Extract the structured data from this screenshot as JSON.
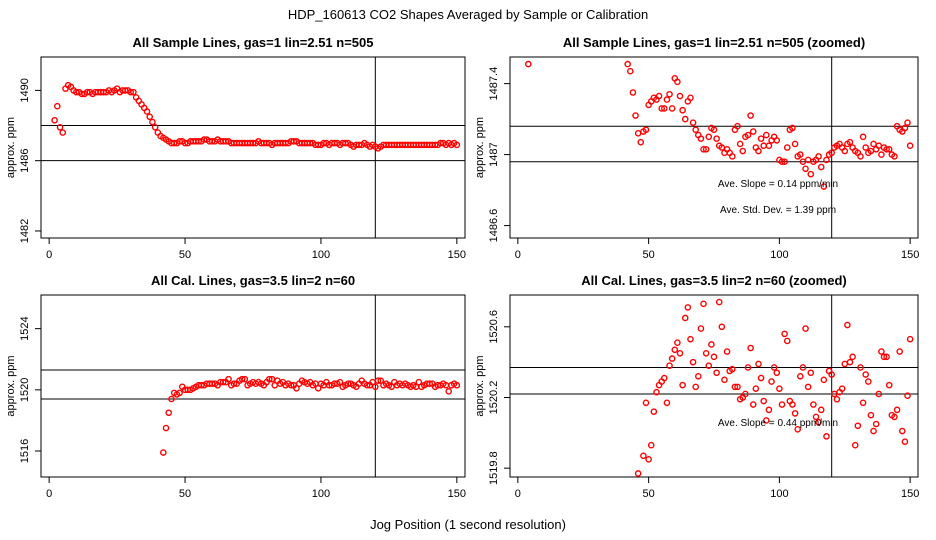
{
  "figure": {
    "title": "HDP_160613  CO2 Shapes Averaged by Sample or Calibration",
    "xlabel": "Jog Position (1 second resolution)"
  },
  "chart_data": [
    {
      "id": "p1",
      "type": "scatter",
      "title": "All Sample Lines, gas=1 lin=2.51 n=505",
      "ylabel": "approx. ppm",
      "xlim": [
        -3,
        153
      ],
      "ylim": [
        1481.6,
        1491.9
      ],
      "xticks": [
        0,
        50,
        100,
        150
      ],
      "yticks": [
        1482,
        1486,
        1490
      ],
      "hlines": [
        1486.0,
        1488.0
      ],
      "vline": 120,
      "annotations": [],
      "x": [
        2,
        3,
        4,
        5,
        6,
        7,
        8,
        9,
        10,
        11,
        12,
        13,
        14,
        15,
        16,
        17,
        18,
        19,
        20,
        21,
        22,
        23,
        24,
        25,
        26,
        27,
        28,
        29,
        30,
        31,
        32,
        33,
        34,
        35,
        36,
        37,
        38,
        39,
        40,
        41,
        42,
        43,
        44,
        45,
        46,
        47,
        48,
        49,
        50,
        51,
        52,
        53,
        54,
        55,
        56,
        57,
        58,
        59,
        60,
        61,
        62,
        63,
        64,
        65,
        66,
        67,
        68,
        69,
        70,
        71,
        72,
        73,
        74,
        75,
        76,
        77,
        78,
        79,
        80,
        81,
        82,
        83,
        84,
        85,
        86,
        87,
        88,
        89,
        90,
        91,
        92,
        93,
        94,
        95,
        96,
        97,
        98,
        99,
        100,
        101,
        102,
        103,
        104,
        105,
        106,
        107,
        108,
        109,
        110,
        111,
        112,
        113,
        114,
        115,
        116,
        117,
        118,
        119,
        120,
        121,
        122,
        123,
        124,
        125,
        126,
        127,
        128,
        129,
        130,
        131,
        132,
        133,
        134,
        135,
        136,
        137,
        138,
        139,
        140,
        141,
        142,
        143,
        144,
        145,
        146,
        147,
        148,
        149,
        150
      ],
      "y": [
        1488.3,
        1489.1,
        1487.9,
        1487.6,
        1490.1,
        1490.3,
        1490.2,
        1490.0,
        1489.9,
        1489.9,
        1489.8,
        1489.8,
        1489.9,
        1489.9,
        1489.8,
        1489.9,
        1489.9,
        1489.9,
        1489.9,
        1489.9,
        1490.0,
        1489.9,
        1490.0,
        1490.1,
        1489.9,
        1490.0,
        1490.0,
        1490.0,
        1489.9,
        1489.9,
        1489.6,
        1489.4,
        1489.2,
        1489.0,
        1488.8,
        1488.5,
        1488.2,
        1487.9,
        1487.6,
        1487.4,
        1487.3,
        1487.2,
        1487.1,
        1487.0,
        1487.0,
        1487.0,
        1487.1,
        1487.1,
        1487.0,
        1487.0,
        1487.1,
        1487.1,
        1487.1,
        1487.1,
        1487.1,
        1487.2,
        1487.2,
        1487.1,
        1487.1,
        1487.1,
        1487.2,
        1487.1,
        1487.1,
        1487.1,
        1487.1,
        1487.0,
        1487.0,
        1487.0,
        1487.0,
        1487.0,
        1487.0,
        1487.0,
        1487.0,
        1487.0,
        1487.0,
        1487.1,
        1487.0,
        1487.0,
        1487.0,
        1487.0,
        1486.9,
        1487.0,
        1487.0,
        1487.0,
        1487.0,
        1487.0,
        1487.0,
        1487.1,
        1487.1,
        1487.1,
        1487.0,
        1487.0,
        1487.0,
        1487.0,
        1487.0,
        1487.0,
        1486.9,
        1486.9,
        1486.9,
        1487.0,
        1487.0,
        1486.9,
        1487.0,
        1487.0,
        1487.0,
        1486.9,
        1487.0,
        1487.0,
        1487.0,
        1486.9,
        1486.8,
        1486.9,
        1486.9,
        1486.9,
        1487.0,
        1486.9,
        1486.8,
        1486.9,
        1486.8,
        1486.7,
        1486.8,
        1486.9,
        1486.9,
        1486.9,
        1486.9,
        1486.9,
        1486.9,
        1486.9,
        1486.9,
        1486.9,
        1486.9,
        1486.9,
        1486.9,
        1486.9,
        1486.9,
        1486.9,
        1486.9,
        1486.9,
        1486.9,
        1486.9,
        1486.9,
        1486.9,
        1487.0,
        1487.0,
        1486.9,
        1487.0,
        1486.9,
        1487.0,
        1486.9
      ]
    },
    {
      "id": "p2",
      "type": "scatter",
      "title": "All Sample Lines, gas=1 lin=2.51 n=505 (zoomed)",
      "ylabel": "approx. ppm",
      "xlim": [
        -3,
        153
      ],
      "ylim": [
        1486.53,
        1487.55
      ],
      "xticks": [
        0,
        50,
        100,
        150
      ],
      "yticks": [
        1486.6,
        1487.0,
        1487.4
      ],
      "hlines": [
        1486.96,
        1487.16
      ],
      "vline": 120,
      "annotations": [
        "Ave. Slope =  0.14  ppm/min",
        "Ave. Std. Dev. =  1.39  ppm"
      ],
      "x": [
        4,
        42,
        43,
        44,
        45,
        46,
        47,
        48,
        49,
        50,
        51,
        52,
        53,
        54,
        55,
        56,
        57,
        58,
        59,
        60,
        61,
        62,
        63,
        64,
        65,
        66,
        67,
        68,
        69,
        70,
        71,
        72,
        73,
        74,
        75,
        76,
        77,
        78,
        79,
        80,
        81,
        82,
        83,
        84,
        85,
        86,
        87,
        88,
        89,
        90,
        91,
        92,
        93,
        94,
        95,
        96,
        97,
        98,
        99,
        100,
        101,
        102,
        103,
        104,
        105,
        106,
        107,
        108,
        109,
        110,
        111,
        112,
        113,
        114,
        115,
        116,
        117,
        118,
        119,
        120,
        121,
        122,
        123,
        124,
        125,
        126,
        127,
        128,
        129,
        130,
        131,
        132,
        133,
        134,
        135,
        136,
        137,
        138,
        139,
        140,
        141,
        142,
        143,
        144,
        145,
        146,
        147,
        148,
        149,
        150
      ],
      "y": [
        1487.51,
        1487.51,
        1487.47,
        1487.35,
        1487.22,
        1487.12,
        1487.07,
        1487.13,
        1487.14,
        1487.28,
        1487.3,
        1487.32,
        1487.31,
        1487.33,
        1487.26,
        1487.26,
        1487.31,
        1487.34,
        1487.26,
        1487.43,
        1487.41,
        1487.33,
        1487.25,
        1487.2,
        1487.3,
        1487.32,
        1487.18,
        1487.14,
        1487.11,
        1487.09,
        1487.03,
        1487.03,
        1487.1,
        1487.15,
        1487.14,
        1487.09,
        1487.05,
        1487.04,
        1487.01,
        1487.03,
        1487.01,
        1486.99,
        1487.14,
        1487.16,
        1487.06,
        1487.02,
        1487.1,
        1487.11,
        1487.22,
        1487.13,
        1487.04,
        1487.02,
        1487.09,
        1487.05,
        1487.11,
        1487.05,
        1487.08,
        1487.1,
        1487.08,
        1486.97,
        1486.96,
        1486.96,
        1487.04,
        1487.14,
        1487.15,
        1487.06,
        1486.99,
        1487.0,
        1486.96,
        1486.92,
        1486.97,
        1486.89,
        1486.96,
        1486.97,
        1486.99,
        1486.93,
        1486.82,
        1486.97,
        1487.0,
        1487.01,
        1487.04,
        1487.05,
        1487.06,
        1487.04,
        1487.02,
        1487.06,
        1487.07,
        1487.04,
        1487.02,
        1487.01,
        1486.99,
        1487.1,
        1487.04,
        1487.01,
        1487.02,
        1487.06,
        1487.03,
        1487.05,
        1487.0,
        1487.04,
        1487.03,
        1487.03,
        1487.0,
        1486.99,
        1487.16,
        1487.14,
        1487.13,
        1487.15,
        1487.18,
        1487.05
      ]
    },
    {
      "id": "p3",
      "type": "scatter",
      "title": "All Cal. Lines, gas=3.5 lin=2 n=60",
      "ylabel": "approx. ppm",
      "xlim": [
        -3,
        153
      ],
      "ylim": [
        1514.3,
        1526.2
      ],
      "xticks": [
        0,
        50,
        100,
        150
      ],
      "yticks": [
        1516,
        1520,
        1524
      ],
      "hlines": [
        1519.4,
        1521.3
      ],
      "vline": 120,
      "annotations": [],
      "x": [
        42,
        43,
        44,
        45,
        46,
        47,
        48,
        49,
        50,
        51,
        52,
        53,
        54,
        55,
        56,
        57,
        58,
        59,
        60,
        61,
        62,
        63,
        64,
        65,
        66,
        67,
        68,
        69,
        70,
        71,
        72,
        73,
        74,
        75,
        76,
        77,
        78,
        79,
        80,
        81,
        82,
        83,
        84,
        85,
        86,
        87,
        88,
        89,
        90,
        91,
        92,
        93,
        94,
        95,
        96,
        97,
        98,
        99,
        100,
        101,
        102,
        103,
        104,
        105,
        106,
        107,
        108,
        109,
        110,
        111,
        112,
        113,
        114,
        115,
        116,
        117,
        118,
        119,
        120,
        121,
        122,
        123,
        124,
        125,
        126,
        127,
        128,
        129,
        130,
        131,
        132,
        133,
        134,
        135,
        136,
        137,
        138,
        139,
        140,
        141,
        142,
        143,
        144,
        145,
        146,
        147,
        148,
        149,
        150
      ],
      "y": [
        1515.9,
        1517.5,
        1518.5,
        1519.4,
        1519.8,
        1519.7,
        1519.8,
        1520.2,
        1520.0,
        1520.0,
        1520.0,
        1520.1,
        1520.2,
        1520.3,
        1520.3,
        1520.3,
        1520.4,
        1520.4,
        1520.4,
        1520.4,
        1520.3,
        1520.5,
        1520.5,
        1520.5,
        1520.7,
        1520.3,
        1520.4,
        1520.4,
        1520.6,
        1520.7,
        1520.7,
        1520.3,
        1520.4,
        1520.5,
        1520.4,
        1520.5,
        1520.4,
        1520.3,
        1520.5,
        1520.7,
        1520.7,
        1520.3,
        1520.6,
        1520.4,
        1520.5,
        1520.3,
        1520.4,
        1520.3,
        1520.3,
        1520.1,
        1520.4,
        1520.6,
        1520.5,
        1520.4,
        1520.5,
        1520.3,
        1520.4,
        1520.1,
        1520.4,
        1520.3,
        1520.5,
        1520.3,
        1520.3,
        1520.4,
        1520.4,
        1520.5,
        1520.2,
        1520.3,
        1520.4,
        1520.4,
        1520.3,
        1520.2,
        1520.4,
        1520.6,
        1520.4,
        1520.3,
        1520.3,
        1520.5,
        1520.2,
        1520.6,
        1520.6,
        1520.3,
        1520.4,
        1520.3,
        1520.2,
        1520.5,
        1520.3,
        1520.4,
        1520.3,
        1520.4,
        1520.3,
        1520.2,
        1520.3,
        1520.2,
        1520.5,
        1520.2,
        1520.3,
        1520.4,
        1520.4,
        1520.4,
        1520.2,
        1520.3,
        1520.3,
        1520.4,
        1520.3,
        1519.9,
        1520.3,
        1520.4,
        1520.3
      ]
    },
    {
      "id": "p4",
      "type": "scatter",
      "title": "All Cal. Lines, gas=3.5 lin=2 n=60 (zoomed)",
      "ylabel": "approx. ppm",
      "xlim": [
        -3,
        153
      ],
      "ylim": [
        1519.75,
        1520.78
      ],
      "xticks": [
        0,
        50,
        100,
        150
      ],
      "yticks": [
        1519.8,
        1520.2,
        1520.6
      ],
      "hlines": [
        1520.22,
        1520.37
      ],
      "vline": 120,
      "annotations": [
        "Ave. Slope =  0.44  ppm/min"
      ],
      "x": [
        46,
        48,
        49,
        50,
        51,
        52,
        53,
        54,
        55,
        56,
        57,
        58,
        59,
        60,
        61,
        62,
        63,
        64,
        65,
        66,
        67,
        68,
        69,
        70,
        71,
        72,
        73,
        74,
        75,
        76,
        77,
        78,
        79,
        80,
        81,
        82,
        83,
        84,
        85,
        86,
        87,
        88,
        89,
        90,
        91,
        92,
        93,
        94,
        95,
        96,
        97,
        98,
        99,
        100,
        101,
        102,
        103,
        104,
        105,
        106,
        107,
        108,
        109,
        110,
        111,
        112,
        113,
        114,
        115,
        116,
        117,
        118,
        119,
        120,
        121,
        122,
        123,
        124,
        125,
        126,
        127,
        128,
        129,
        130,
        131,
        132,
        133,
        134,
        135,
        136,
        137,
        138,
        139,
        140,
        141,
        142,
        143,
        144,
        145,
        146,
        147,
        148,
        149,
        150
      ],
      "y": [
        1519.77,
        1519.87,
        1520.17,
        1519.85,
        1519.93,
        1520.12,
        1520.23,
        1520.27,
        1520.29,
        1520.31,
        1520.17,
        1520.38,
        1520.42,
        1520.47,
        1520.51,
        1520.45,
        1520.27,
        1520.65,
        1520.71,
        1520.53,
        1520.4,
        1520.26,
        1520.32,
        1520.59,
        1520.73,
        1520.45,
        1520.38,
        1520.5,
        1520.43,
        1520.34,
        1520.74,
        1520.6,
        1520.3,
        1520.46,
        1520.35,
        1520.36,
        1520.26,
        1520.26,
        1520.19,
        1520.2,
        1520.22,
        1520.37,
        1520.48,
        1520.16,
        1520.25,
        1520.39,
        1520.31,
        1520.18,
        1520.07,
        1520.13,
        1520.29,
        1520.37,
        1520.34,
        1520.25,
        1520.16,
        1520.56,
        1520.52,
        1520.18,
        1520.16,
        1520.11,
        1520.02,
        1520.32,
        1520.37,
        1520.59,
        1520.26,
        1520.34,
        1520.16,
        1520.09,
        1520.06,
        1520.13,
        1520.3,
        1519.98,
        1520.35,
        1520.33,
        1520.22,
        1520.19,
        1520.23,
        1520.25,
        1520.39,
        1520.61,
        1520.4,
        1520.43,
        1519.93,
        1520.04,
        1520.37,
        1520.17,
        1520.33,
        1520.29,
        1520.1,
        1520.01,
        1520.05,
        1520.22,
        1520.46,
        1520.43,
        1520.43,
        1520.27,
        1520.1,
        1520.09,
        1520.13,
        1520.46,
        1520.01,
        1519.95,
        1520.21,
        1520.53
      ]
    }
  ]
}
